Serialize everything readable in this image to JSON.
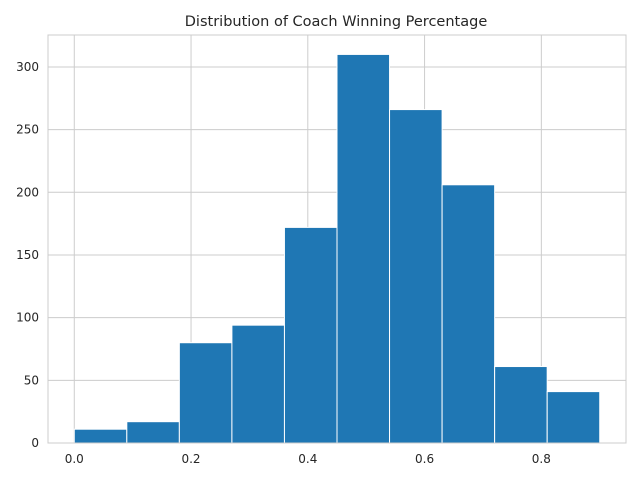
{
  "chart_data": {
    "type": "histogram",
    "title": "Distribution of Coach Winning Percentage",
    "xlabel": "",
    "ylabel": "",
    "bins": [
      {
        "start": 0.0,
        "end": 0.09,
        "count": 11
      },
      {
        "start": 0.09,
        "end": 0.18,
        "count": 17
      },
      {
        "start": 0.18,
        "end": 0.27,
        "count": 80
      },
      {
        "start": 0.27,
        "end": 0.36,
        "count": 94
      },
      {
        "start": 0.36,
        "end": 0.45,
        "count": 172
      },
      {
        "start": 0.45,
        "end": 0.54,
        "count": 310
      },
      {
        "start": 0.54,
        "end": 0.63,
        "count": 266
      },
      {
        "start": 0.63,
        "end": 0.72,
        "count": 206
      },
      {
        "start": 0.72,
        "end": 0.81,
        "count": 61
      },
      {
        "start": 0.81,
        "end": 0.9,
        "count": 41
      }
    ],
    "xlim": [
      -0.045,
      0.945
    ],
    "ylim": [
      0,
      325.5
    ],
    "xticks": [
      "0.0",
      "0.2",
      "0.4",
      "0.6",
      "0.8"
    ],
    "yticks": [
      "0",
      "50",
      "100",
      "150",
      "200",
      "250",
      "300"
    ],
    "grid": true,
    "bar_color": "#1f77b4",
    "grid_color": "#cccccc"
  }
}
